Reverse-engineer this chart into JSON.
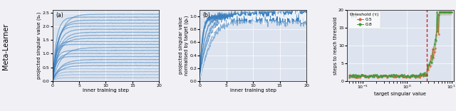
{
  "fig_width": 6.4,
  "fig_height": 1.56,
  "dpi": 100,
  "bg_color": "#f0f0f5",
  "plot_bg_color": "#dde4ef",
  "panel_a": {
    "label": "(a)",
    "xlabel": "inner training step",
    "ylabel": "projected singular value (sₖ)",
    "xlim": [
      0,
      20
    ],
    "ylim": [
      0,
      2.6
    ],
    "yticks": [
      0.0,
      0.5,
      1.0,
      1.5,
      2.0,
      2.5
    ],
    "xticks": [
      0,
      5,
      10,
      15,
      20
    ],
    "n_curves": 22,
    "curve_color": "#3a7fbf",
    "curve_alpha": 0.55
  },
  "panel_b": {
    "label": "(b)",
    "xlabel": "inner training step",
    "ylabel": "projected singular value\nnormalised by target (gₖ)",
    "xlim": [
      0,
      20
    ],
    "ylim": [
      0,
      1.1
    ],
    "yticks": [
      0.0,
      0.2,
      0.4,
      0.6,
      0.8,
      1.0
    ],
    "xticks": [
      0,
      5,
      10,
      15,
      20
    ],
    "n_curves": 14,
    "curve_color": "#3a7fbf",
    "curve_alpha": 0.55
  },
  "panel_c": {
    "label": "(c)",
    "xlabel": "target singular value",
    "ylabel": "steps to reach threshold",
    "ylim": [
      0,
      20
    ],
    "yticks": [
      0,
      5,
      10,
      15,
      20
    ],
    "legend_title": "threshold (τ)",
    "series": [
      {
        "label": "0.5",
        "color": "#d4622a",
        "marker": "o"
      },
      {
        "label": "0.8",
        "color": "#3a9a3a",
        "marker": "o"
      }
    ],
    "vline_x": 2.8,
    "vline_color": "#cc2222"
  },
  "ylabel_left": "Meta-Learner"
}
